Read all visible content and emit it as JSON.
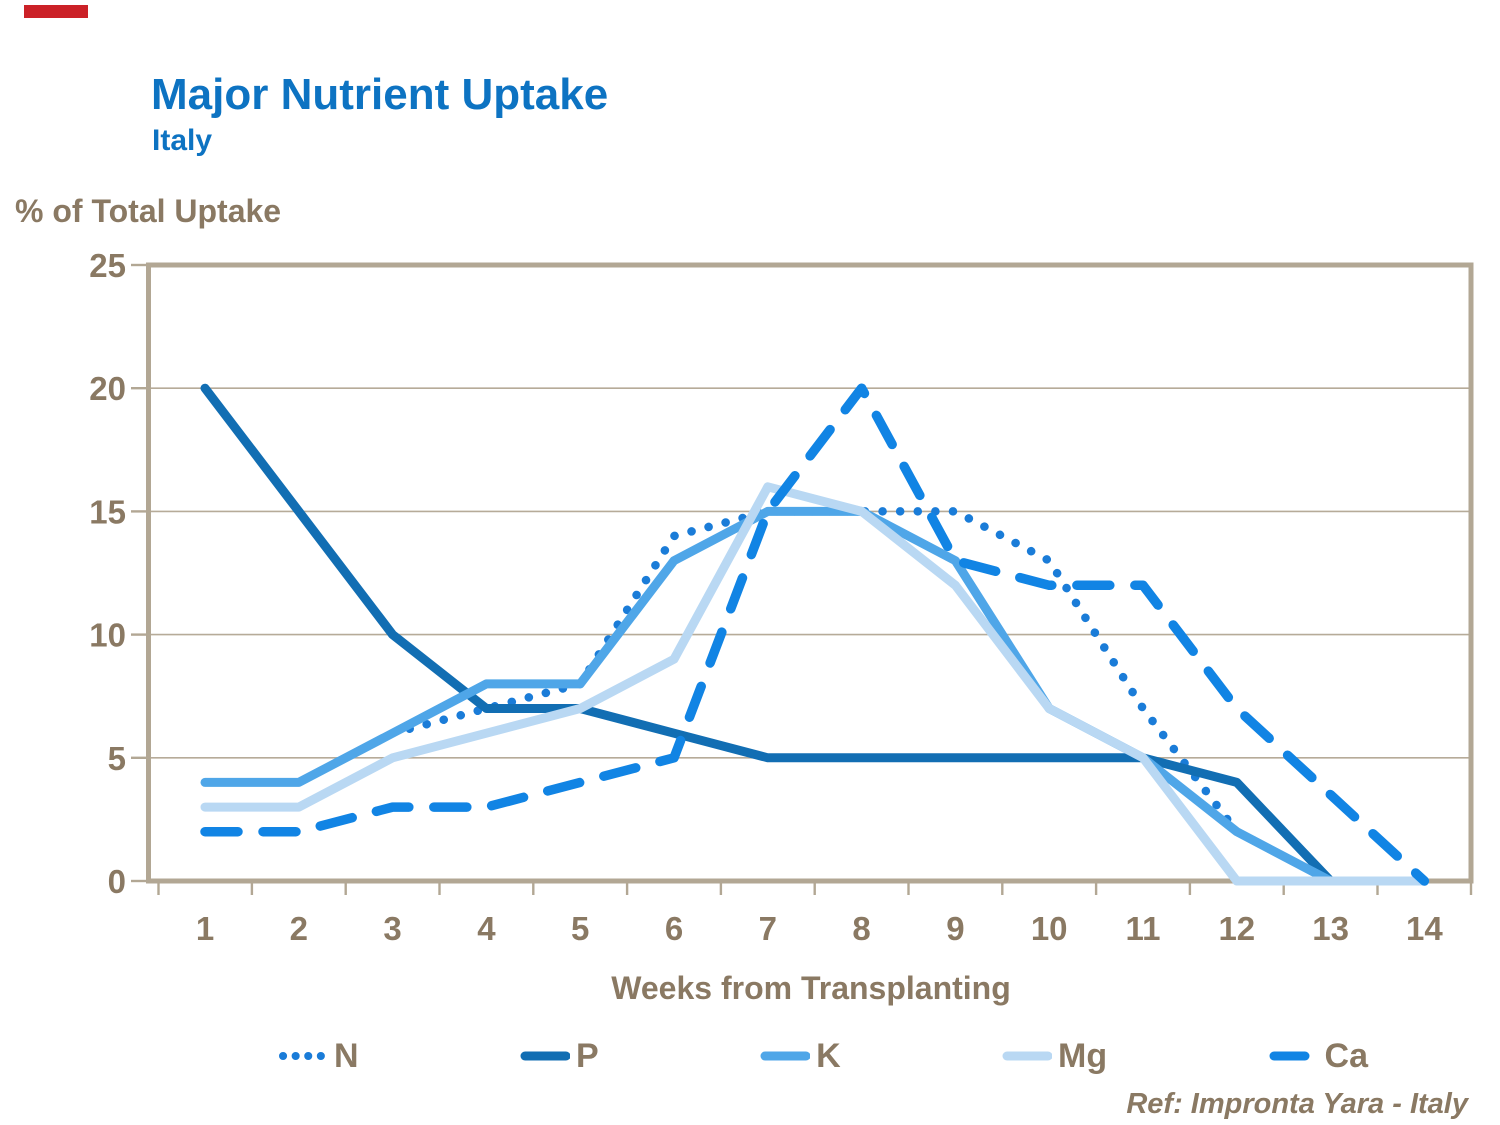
{
  "header": {
    "title": "Major Nutrient Uptake",
    "subtitle": "Italy",
    "title_color": "#0d73c2"
  },
  "footer": {
    "ref": "Ref: Impronta Yara - Italy"
  },
  "decor": {
    "red_marker_color": "#cb2127"
  },
  "chart_data": {
    "type": "line",
    "title": "Major Nutrient Uptake",
    "subtitle": "Italy",
    "xlabel": "Weeks from Transplanting",
    "ylabel": "% of Total Uptake",
    "x": [
      1,
      2,
      3,
      4,
      5,
      6,
      7,
      8,
      9,
      10,
      11,
      12,
      13,
      14
    ],
    "ylim": [
      0,
      25
    ],
    "y_ticks": [
      0,
      5,
      10,
      15,
      20,
      25
    ],
    "grid": "horizontal",
    "legend_position": "bottom",
    "axis_color": "#8a7963",
    "grid_color": "#b6ab99",
    "frame_color": "#b2a794",
    "series": [
      {
        "name": "N",
        "style": "dotted",
        "color": "#1a7cd8",
        "values": [
          null,
          null,
          6,
          7,
          8,
          14,
          15,
          15,
          15,
          13,
          7,
          2,
          0,
          null
        ]
      },
      {
        "name": "P",
        "style": "solid",
        "color": "#126eb3",
        "values": [
          20,
          15,
          10,
          7,
          7,
          6,
          5,
          5,
          5,
          5,
          5,
          4,
          0,
          null
        ]
      },
      {
        "name": "K",
        "style": "solid",
        "color": "#4fa6e8",
        "values": [
          4,
          4,
          6,
          8,
          8,
          13,
          15,
          15,
          13,
          7,
          5,
          2,
          0,
          null
        ]
      },
      {
        "name": "Mg",
        "style": "solid",
        "color": "#b9d8f3",
        "values": [
          3,
          3,
          5,
          6,
          7,
          9,
          16,
          15,
          12,
          7,
          5,
          0,
          0,
          0
        ]
      },
      {
        "name": "Ca",
        "style": "dashed",
        "color": "#1184e4",
        "values": [
          2,
          2,
          3,
          3,
          4,
          5,
          15,
          20,
          13,
          12,
          12,
          7,
          3.5,
          0
        ]
      }
    ]
  }
}
